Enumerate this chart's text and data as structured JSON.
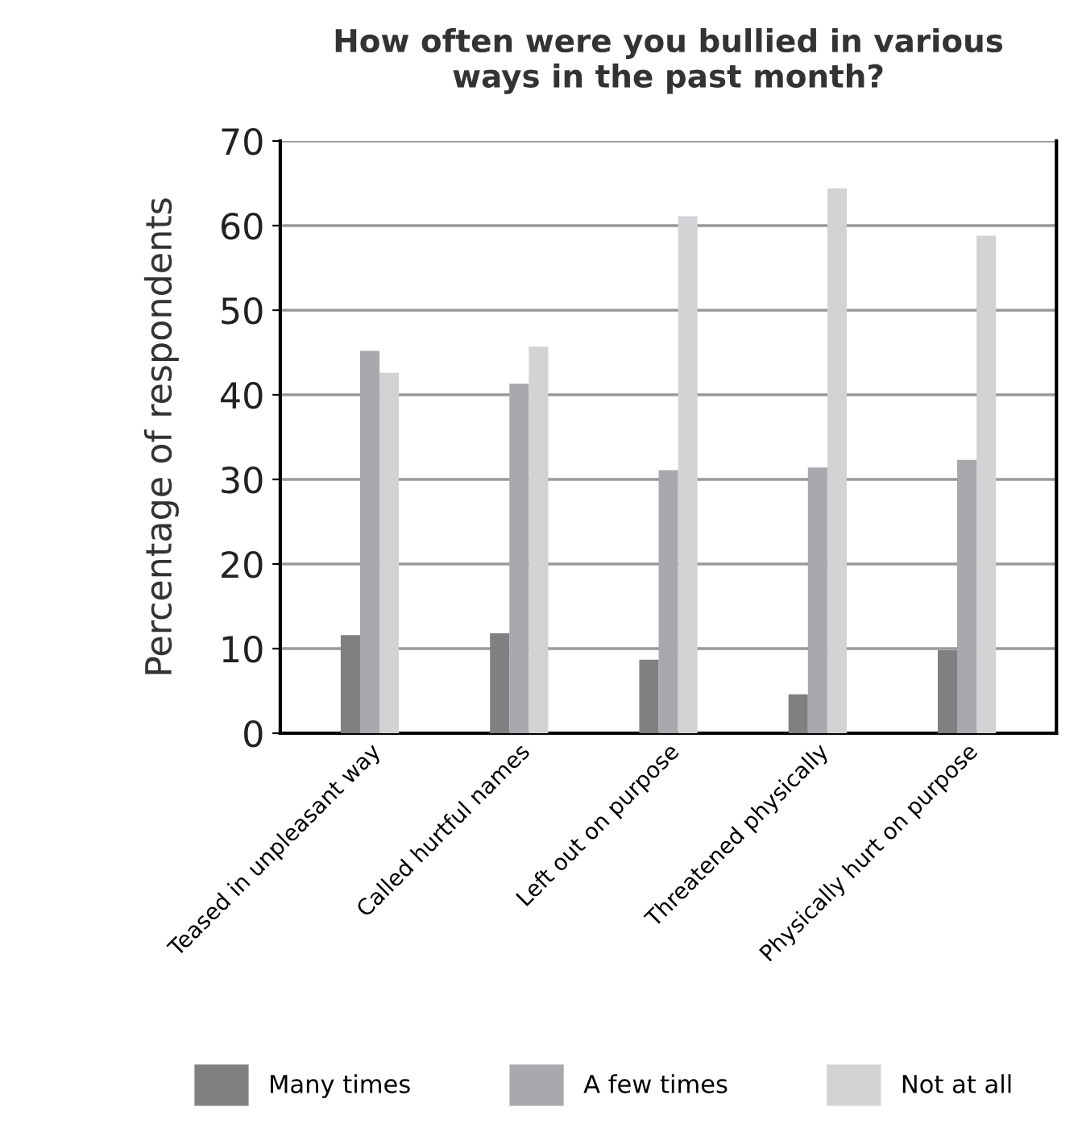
{
  "chart_data": {
    "type": "bar",
    "title": "How often were you bullied in various\nways in the past month?",
    "ylabel": "Percentage of respondents",
    "categories": [
      "Teased in unpleasant way",
      "Called hurtful names",
      "Left out on purpose",
      "Threatened physically",
      "Physically hurt on purpose"
    ],
    "series": [
      {
        "name": "Many times",
        "color": "#808083",
        "values": [
          11.6,
          11.8,
          8.7,
          4.6,
          9.8
        ]
      },
      {
        "name": "A few times",
        "color": "#a8a9ac",
        "values": [
          45.2,
          41.3,
          31.1,
          31.4,
          32.3
        ]
      },
      {
        "name": "Not at all",
        "color": "#d2d3d5",
        "values": [
          42.6,
          45.7,
          61.1,
          64.4,
          58.8
        ]
      }
    ],
    "ylim": [
      0,
      70
    ],
    "yticks": [
      0,
      10,
      20,
      30,
      40,
      50,
      60,
      70
    ],
    "grid": "y",
    "legend": "bottom"
  }
}
